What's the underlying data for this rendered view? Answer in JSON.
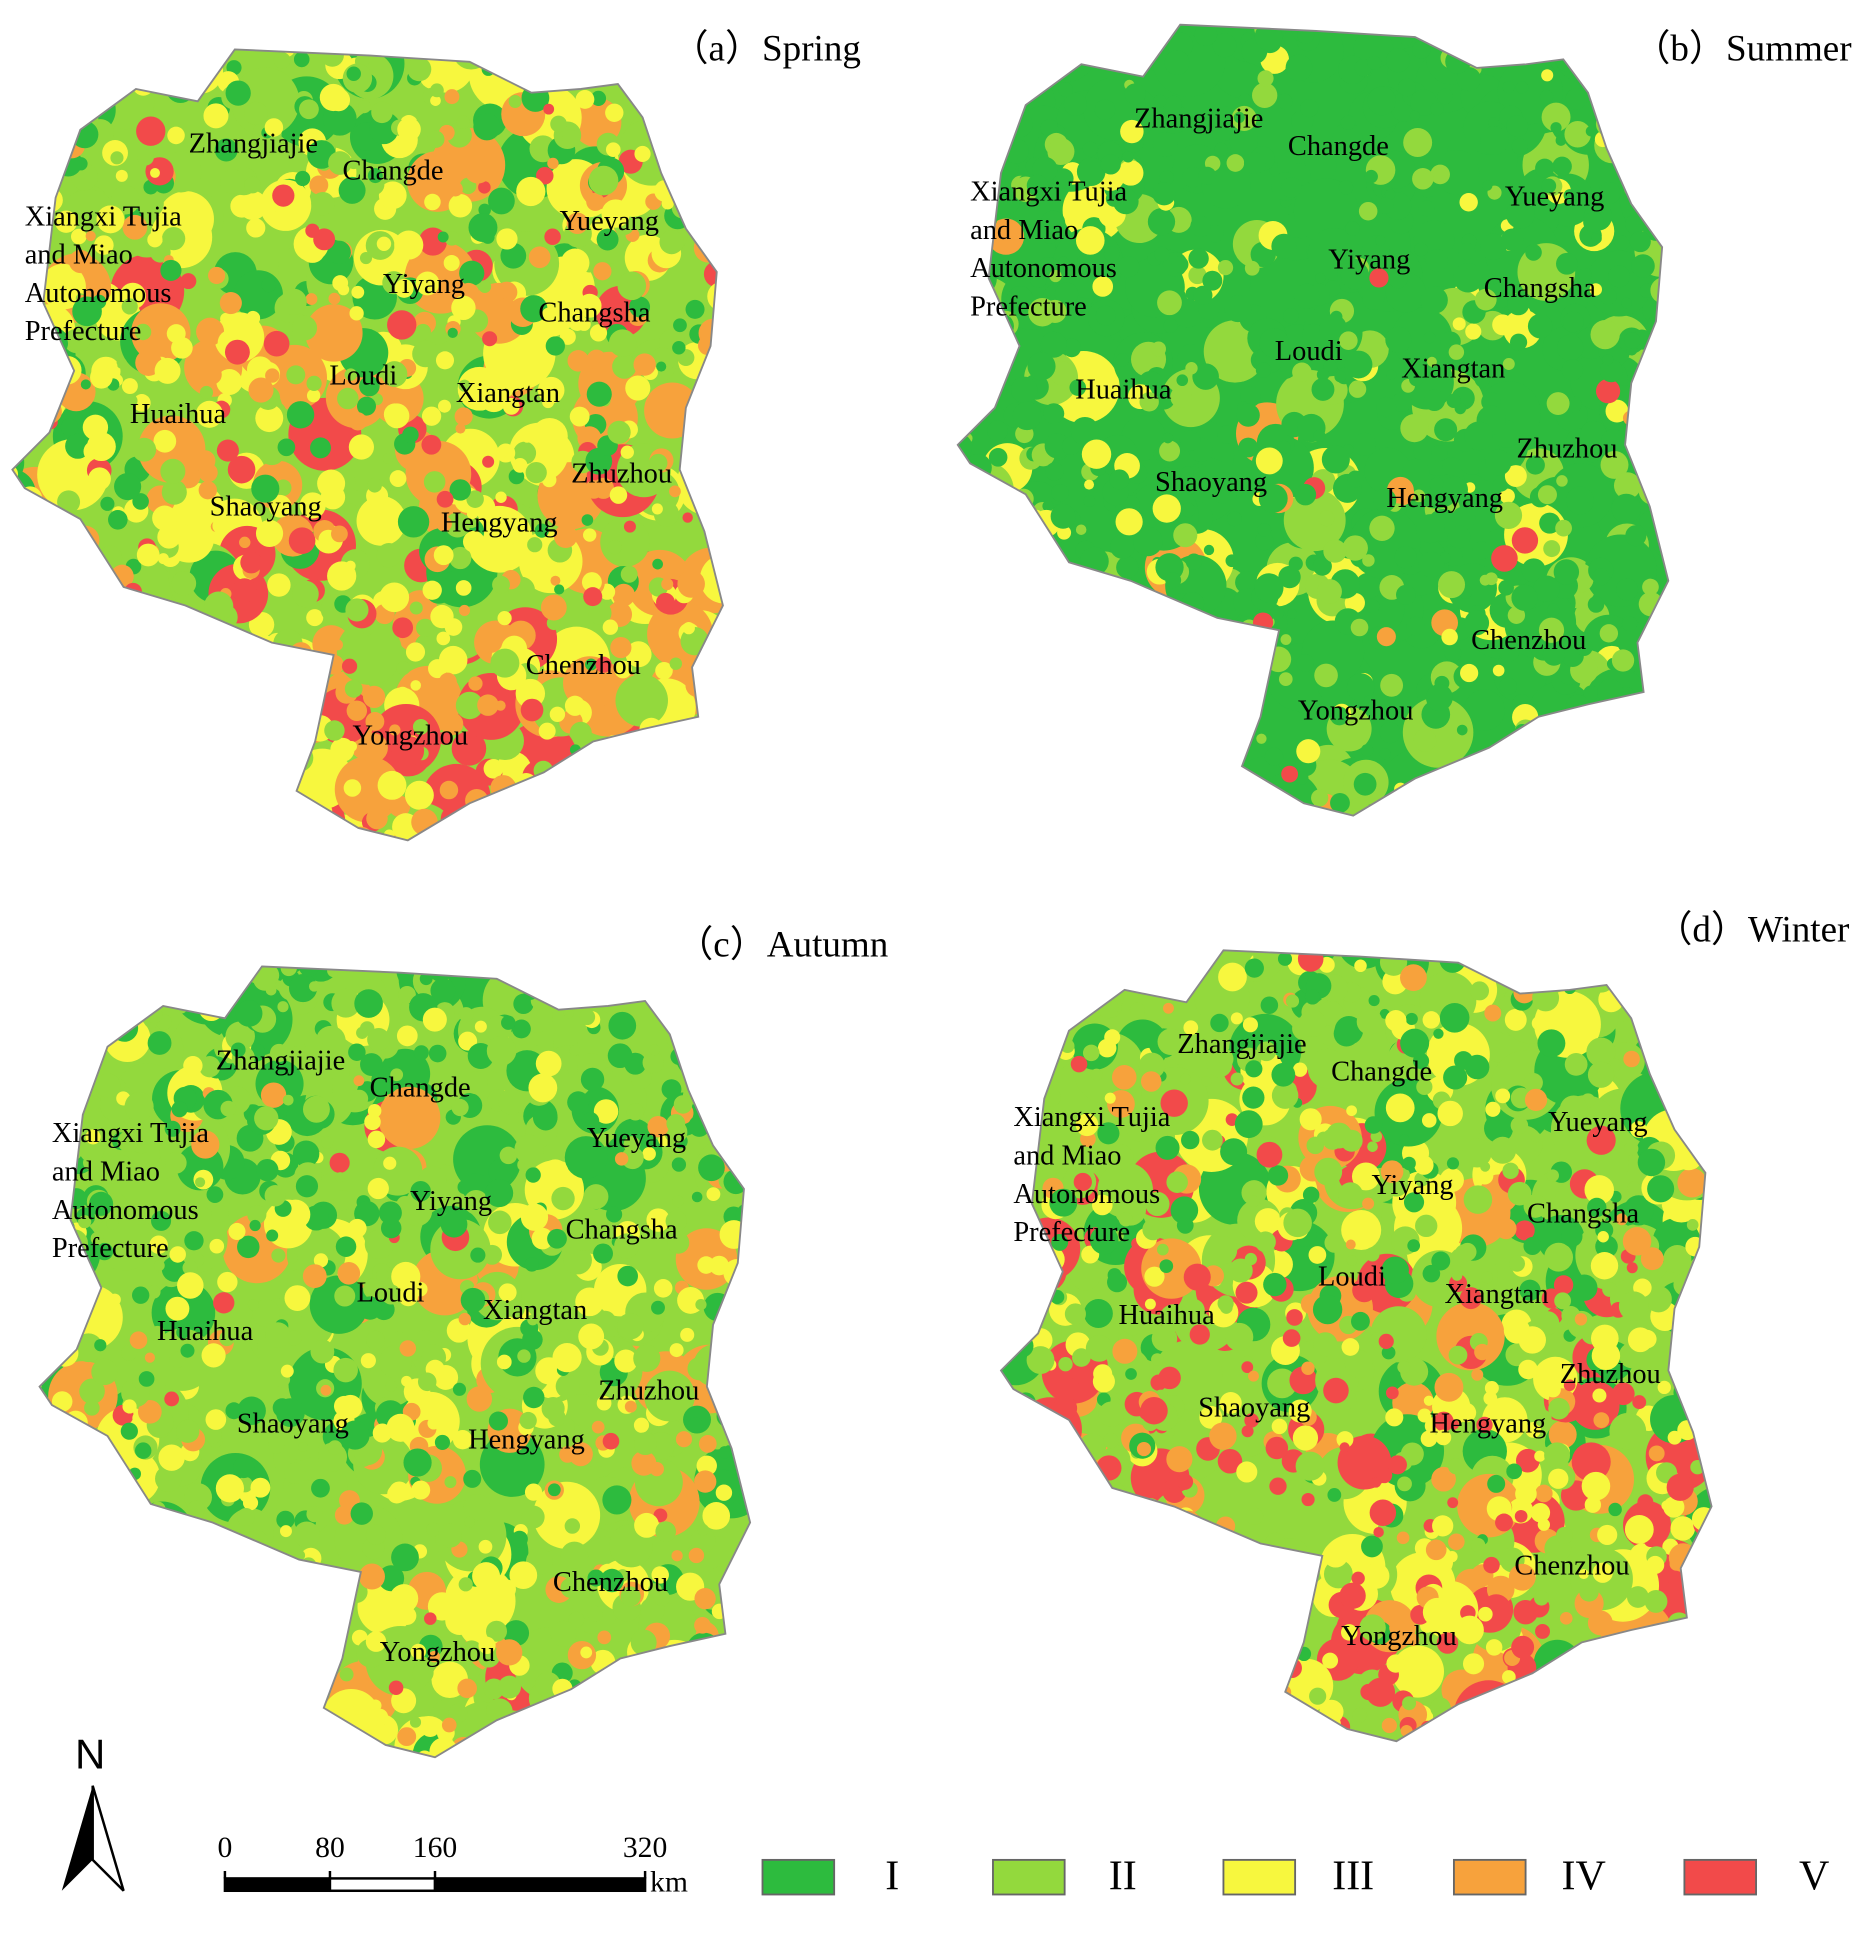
{
  "panels": [
    {
      "title": "（a）Spring",
      "labels": [
        [
          "Zhangjiajie"
        ],
        [
          "Changde"
        ],
        [
          "Xiangxi Tujia",
          "and Miao",
          "Autonomous",
          "Prefecture"
        ],
        [
          "Yueyang"
        ],
        [
          "Yiyang"
        ],
        [
          "Changsha"
        ],
        [
          "Loudi"
        ],
        [
          "Xiangtan"
        ],
        [
          "Huaihua"
        ],
        [
          "Zhuzhou"
        ],
        [
          "Shaoyang"
        ],
        [
          "Hengyang"
        ],
        [
          "Chenzhou"
        ],
        [
          "Yongzhou"
        ]
      ]
    },
    {
      "title": "（b）Summer",
      "labels": [
        [
          "Zhangjiajie"
        ],
        [
          "Changde"
        ],
        [
          "Xiangxi Tujia",
          "and Miao",
          "Autonomous",
          "Prefecture"
        ],
        [
          "Yueyang"
        ],
        [
          "Yiyang"
        ],
        [
          "Changsha"
        ],
        [
          "Loudi"
        ],
        [
          "Xiangtan"
        ],
        [
          "Huaihua"
        ],
        [
          "Zhuzhou"
        ],
        [
          "Shaoyang"
        ],
        [
          "Hengyang"
        ],
        [
          "Chenzhou"
        ],
        [
          "Yongzhou"
        ]
      ]
    },
    {
      "title": "（c）Autumn",
      "labels": [
        [
          "Zhangjiajie"
        ],
        [
          "Changde"
        ],
        [
          "Xiangxi Tujia",
          "and Miao",
          "Autonomous",
          "Prefecture"
        ],
        [
          "Yueyang"
        ],
        [
          "Yiyang"
        ],
        [
          "Changsha"
        ],
        [
          "Loudi"
        ],
        [
          "Xiangtan"
        ],
        [
          "Huaihua"
        ],
        [
          "Zhuzhou"
        ],
        [
          "Shaoyang"
        ],
        [
          "Hengyang"
        ],
        [
          "Chenzhou"
        ],
        [
          "Yongzhou"
        ]
      ]
    },
    {
      "title": "（d）Winter",
      "labels": [
        [
          "Zhangjiajie"
        ],
        [
          "Changde"
        ],
        [
          "Xiangxi Tujia",
          "and Miao",
          "Autonomous",
          "Prefecture"
        ],
        [
          "Yueyang"
        ],
        [
          "Yiyang"
        ],
        [
          "Changsha"
        ],
        [
          "Loudi"
        ],
        [
          "Xiangtan"
        ],
        [
          "Huaihua"
        ],
        [
          "Zhuzhou"
        ],
        [
          "Shaoyang"
        ],
        [
          "Hengyang"
        ],
        [
          "Chenzhou"
        ],
        [
          "Yongzhou"
        ]
      ]
    }
  ],
  "north": "N",
  "scale_bar": {
    "ticks": [
      0,
      80,
      160,
      320
    ],
    "unit": "km"
  },
  "legend": [
    {
      "label": "I",
      "color": "#2dbb3e"
    },
    {
      "label": "II",
      "color": "#93d93d"
    },
    {
      "label": "III",
      "color": "#f7f73e"
    },
    {
      "label": "IV",
      "color": "#f7a23c"
    },
    {
      "label": "V",
      "color": "#f24a4a"
    }
  ]
}
